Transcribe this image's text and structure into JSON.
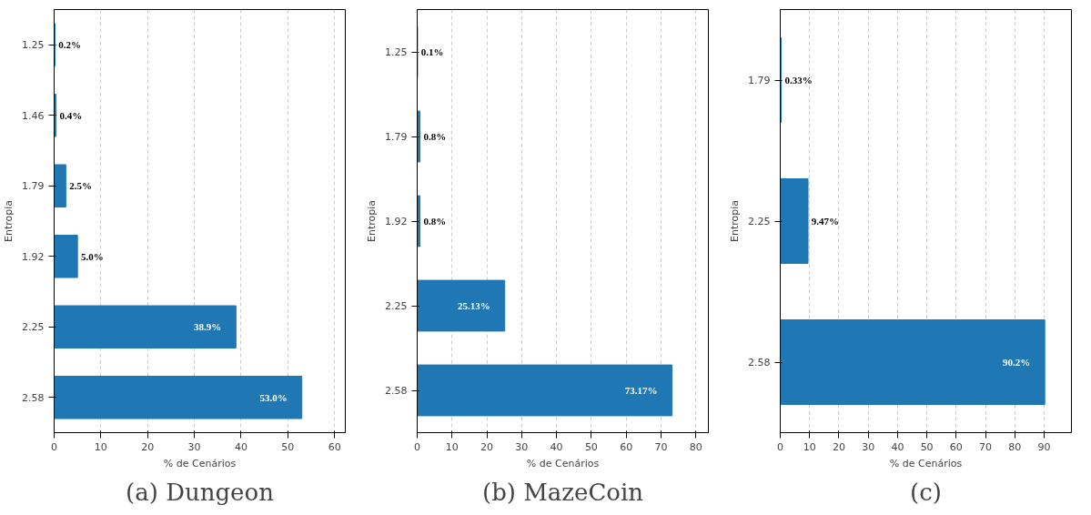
{
  "chart_data": [
    {
      "type": "bar",
      "orientation": "horizontal",
      "title": "(a) Dungeon",
      "xlabel": "% de Cenários",
      "ylabel": "Entropia",
      "categories": [
        "1.25",
        "1.46",
        "1.79",
        "1.92",
        "2.25",
        "2.58"
      ],
      "values": [
        0.2,
        0.4,
        2.5,
        5.0,
        38.9,
        53.0
      ],
      "value_labels": [
        "0.2%",
        "0.4%",
        "2.5%",
        "5.0%",
        "38.9%",
        "53.0%"
      ],
      "color": "#1f77b4",
      "xlim": [
        0,
        62.3
      ],
      "xticks": [
        0,
        10,
        20,
        30,
        40,
        50,
        60
      ],
      "grid": "x"
    },
    {
      "type": "bar",
      "orientation": "horizontal",
      "title": "(b) MazeCoin",
      "xlabel": "% de Cenários",
      "ylabel": "Entropia",
      "categories": [
        "1.25",
        "1.79",
        "1.92",
        "2.25",
        "2.58"
      ],
      "values": [
        0.1,
        0.8,
        0.8,
        25.13,
        73.17
      ],
      "value_labels": [
        "0.1%",
        "0.8%",
        "0.8%",
        "25.13%",
        "73.17%"
      ],
      "color": "#1f77b4",
      "xlim": [
        0,
        83.6
      ],
      "xticks": [
        0,
        10,
        20,
        30,
        40,
        50,
        60,
        70,
        80
      ],
      "grid": "x"
    },
    {
      "type": "bar",
      "orientation": "horizontal",
      "title": "(c)",
      "xlabel": "% de Cenários",
      "ylabel": "Entropia",
      "categories": [
        "1.79",
        "2.25",
        "2.58"
      ],
      "values": [
        0.33,
        9.47,
        90.2
      ],
      "value_labels": [
        "0.33%",
        "9.47%",
        "90.2%"
      ],
      "color": "#1f77b4",
      "xlim": [
        0,
        99.3
      ],
      "xticks": [
        0,
        10,
        20,
        30,
        40,
        50,
        60,
        70,
        80,
        90
      ],
      "grid": "x"
    }
  ]
}
